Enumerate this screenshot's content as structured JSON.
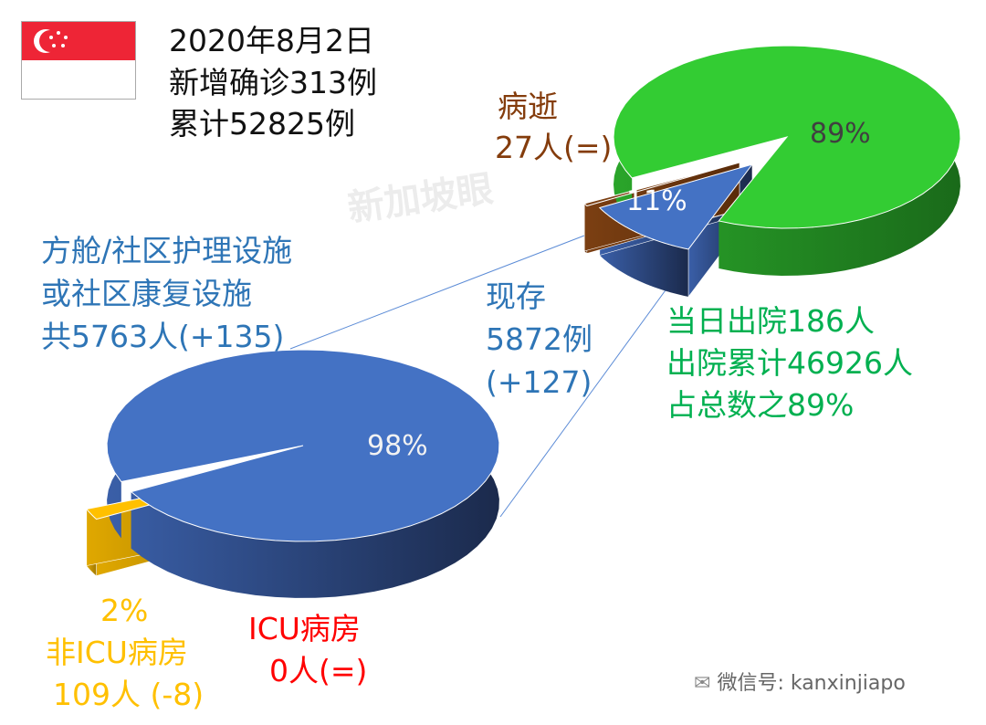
{
  "header": {
    "date": "2020年8月2日",
    "new_cases": "新增确诊313例",
    "total_cases": "累计52825例"
  },
  "watermark": "新加坡眼",
  "footer": {
    "wechat": "微信号: kanxinjiapo"
  },
  "colors": {
    "green": "#33cc33",
    "blue": "#4472c4",
    "brown": "#7b3f12",
    "yellow": "#ffc000",
    "red": "#ff0000",
    "label_blue": "#2e75b6",
    "label_green": "#00b050"
  },
  "labels": {
    "deaths": {
      "title": "病逝",
      "value": "27人(=)"
    },
    "community": {
      "line1": "方舱/社区护理设施",
      "line2": "或社区康复设施",
      "line3": "共5763人(+135)"
    },
    "active": {
      "line1": "现存",
      "line2": "5872例",
      "line3": "(+127)"
    },
    "discharged": {
      "line1": "当日出院186人",
      "line2": "出院累计46926人",
      "line3": "占总数之89%"
    },
    "non_icu": {
      "pct": "2%",
      "line1": "非ICU病房",
      "line2": "109人 (-8)"
    },
    "icu": {
      "line1": "ICU病房",
      "line2": "0人(=)"
    }
  },
  "chart_data": [
    {
      "type": "pie",
      "style": "3d-exploded",
      "slices": [
        {
          "name": "出院",
          "value": 46926,
          "label": "89%",
          "color": "#33cc33"
        },
        {
          "name": "现存",
          "value": 5872,
          "label": "11%",
          "color": "#4472c4",
          "exploded": true
        },
        {
          "name": "病逝",
          "value": 27,
          "label": "",
          "color": "#7b3f12",
          "exploded": true
        }
      ]
    },
    {
      "type": "pie",
      "style": "3d-exploded",
      "slices": [
        {
          "name": "方舱/社区护理设施",
          "value": 5763,
          "label": "98%",
          "color": "#4472c4"
        },
        {
          "name": "非ICU病房",
          "value": 109,
          "label": "2%",
          "color": "#ffc000",
          "exploded": true
        },
        {
          "name": "ICU病房",
          "value": 0,
          "label": "",
          "color": "#ff0000"
        }
      ]
    }
  ]
}
